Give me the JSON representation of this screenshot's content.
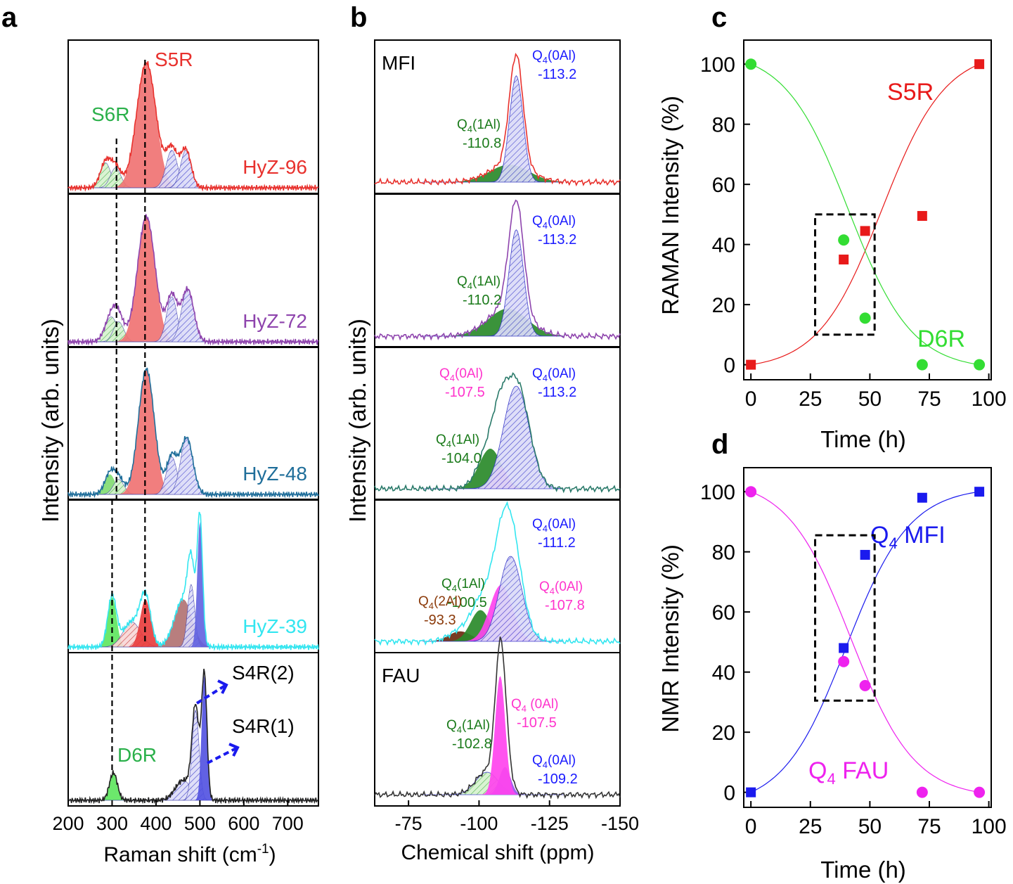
{
  "figure": {
    "panels": {
      "a": "a",
      "b": "b",
      "c": "c",
      "d": "d"
    }
  },
  "chart_data": [
    {
      "panel": "a",
      "type": "line",
      "xlabel": "Raman shift (cm",
      "xlabel_sup": "-1",
      "xlabel_end": ")",
      "ylabel": "Intensity (arb. units)",
      "xlim": [
        200,
        770
      ],
      "xticks": [
        "200",
        "300",
        "400",
        "500",
        "600",
        "700"
      ],
      "traces": [
        {
          "name": "HyZ-96",
          "color": "#e8312d",
          "peaks": [
            {
              "c": 285,
              "h": 0.2,
              "w": 12,
              "fill": "#b0d8a0",
              "hatch": true
            },
            {
              "c": 308,
              "h": 0.16,
              "w": 12,
              "fill": "#8fd48f",
              "hatch": true
            },
            {
              "c": 378,
              "h": 1.0,
              "w": 22,
              "fill": "#f07070",
              "hatch": false
            },
            {
              "c": 436,
              "h": 0.3,
              "w": 13,
              "fill": "#8080e0",
              "hatch": true
            },
            {
              "c": 468,
              "h": 0.3,
              "w": 12,
              "fill": "#8080e0",
              "hatch": true
            }
          ]
        },
        {
          "name": "HyZ-72",
          "color": "#8e44ad",
          "peaks": [
            {
              "c": 298,
              "h": 0.2,
              "w": 14,
              "fill": "#b0d8a0",
              "hatch": true
            },
            {
              "c": 315,
              "h": 0.16,
              "w": 12,
              "fill": "#8fd48f",
              "hatch": true
            },
            {
              "c": 378,
              "h": 1.0,
              "w": 20,
              "fill": "#f07070",
              "hatch": false
            },
            {
              "c": 436,
              "h": 0.36,
              "w": 12,
              "fill": "#8080e0",
              "hatch": true
            },
            {
              "c": 472,
              "h": 0.42,
              "w": 14,
              "fill": "#8080e0",
              "hatch": true
            }
          ]
        },
        {
          "name": "HyZ-48",
          "color": "#1f6e9a",
          "peaks": [
            {
              "c": 295,
              "h": 0.16,
              "w": 12,
              "fill": "#7fdc6f",
              "hatch": false
            },
            {
              "c": 315,
              "h": 0.12,
              "w": 12,
              "fill": "#a8e0a0",
              "hatch": true
            },
            {
              "c": 378,
              "h": 1.0,
              "w": 18,
              "fill": "#f07070",
              "hatch": false
            },
            {
              "c": 436,
              "h": 0.3,
              "w": 12,
              "fill": "#8080e0",
              "hatch": true
            },
            {
              "c": 470,
              "h": 0.45,
              "w": 14,
              "fill": "#8080e0",
              "hatch": true
            }
          ]
        },
        {
          "name": "HyZ-39",
          "color": "#33e6f0",
          "peaks": [
            {
              "c": 300,
              "h": 0.4,
              "w": 10,
              "fill": "#5ce65c",
              "hatch": false
            },
            {
              "c": 345,
              "h": 0.2,
              "w": 20,
              "fill": "#f4a0a0",
              "hatch": true
            },
            {
              "c": 376,
              "h": 0.38,
              "w": 12,
              "fill": "#e83a3a",
              "hatch": false
            },
            {
              "c": 462,
              "h": 0.38,
              "w": 20,
              "fill": "#b07070",
              "hatch": false
            },
            {
              "c": 480,
              "h": 0.5,
              "w": 8,
              "fill": "#9080d0",
              "hatch": true
            },
            {
              "c": 500,
              "h": 1.0,
              "w": 6,
              "fill": "#6060e0",
              "hatch": false
            }
          ]
        },
        {
          "name": "",
          "color": "#222222",
          "peaks": [
            {
              "c": 303,
              "h": 0.22,
              "w": 9,
              "fill": "#5ce65c",
              "hatch": false
            },
            {
              "c": 462,
              "h": 0.16,
              "w": 18,
              "fill": "#b07070",
              "hatch": true
            },
            {
              "c": 490,
              "h": 0.72,
              "w": 8,
              "fill": "#8080e0",
              "hatch": true
            },
            {
              "c": 510,
              "h": 1.0,
              "w": 6,
              "fill": "#5050e0",
              "hatch": false
            }
          ]
        }
      ],
      "annotations": {
        "S5R": "S5R",
        "S6R": "S6R",
        "D6R": "D6R",
        "S4R2": "S4R(2)",
        "S4R1": "S4R(1)"
      },
      "dashed_lines_x": [
        310,
        375,
        300
      ]
    },
    {
      "panel": "b",
      "type": "line",
      "xlabel": "Chemical shift  (ppm)",
      "ylabel": "Intensity (arb. units)",
      "xlim": [
        -63,
        -150
      ],
      "xticks": [
        "-75",
        "-100",
        "-125",
        "-150"
      ],
      "xtick_values": [
        -75,
        -100,
        -125,
        -150
      ],
      "panel_labels": [
        "MFI",
        "",
        "",
        "",
        "FAU"
      ],
      "annotations": [
        {
          "panel": 0,
          "items": [
            {
              "label": "Q4(0Al)",
              "value": "-113.2",
              "color": "#1a1aff"
            },
            {
              "label": "Q4(1Al)",
              "value": "-110.8",
              "color": "#1a7a1a"
            }
          ]
        },
        {
          "panel": 1,
          "items": [
            {
              "label": "Q4(0Al)",
              "value": "-113.2",
              "color": "#1a1aff"
            },
            {
              "label": "Q4(1Al)",
              "value": "-110.2",
              "color": "#1a7a1a"
            }
          ]
        },
        {
          "panel": 2,
          "items": [
            {
              "label": "Q4(0Al)",
              "value": "-107.5",
              "color": "#ff33cc"
            },
            {
              "label": "Q4(0Al)",
              "value": "-113.2",
              "color": "#1a1aff"
            },
            {
              "label": "Q4(1Al)",
              "value": "-104.0",
              "color": "#1a7a1a"
            }
          ]
        },
        {
          "panel": 3,
          "items": [
            {
              "label": "Q4(0Al)",
              "value": "-111.2",
              "color": "#1a1aff"
            },
            {
              "label": "Q4(1Al)",
              "value": "-100.5",
              "color": "#1a7a1a"
            },
            {
              "label": "Q4(0Al)",
              "value": "-107.8",
              "color": "#ff33cc"
            },
            {
              "label": "Q4(2Al)",
              "value": "-93.3",
              "color": "#8b3a0a"
            }
          ]
        },
        {
          "panel": 4,
          "items": [
            {
              "label": "Q4 (0Al)",
              "value": "-107.5",
              "color": "#ff33cc"
            },
            {
              "label": "Q4(1Al)",
              "value": "-102.8",
              "color": "#1a7a1a"
            },
            {
              "label": "Q4(0Al)",
              "value": "-109.2",
              "color": "#1a1aff"
            }
          ]
        }
      ]
    },
    {
      "panel": "c",
      "type": "scatter",
      "xlabel": "Time (h)",
      "ylabel": "RAMAN Intensity (%)",
      "xlim": [
        -3,
        101
      ],
      "ylim": [
        -5,
        108
      ],
      "xticks": [
        0,
        25,
        50,
        75,
        100
      ],
      "yticks": [
        0,
        20,
        40,
        60,
        80,
        100
      ],
      "series": [
        {
          "name": "S5R",
          "color": "#e81a1a",
          "marker": "square",
          "x": [
            0,
            39,
            48,
            72,
            96
          ],
          "y": [
            0,
            35,
            44.5,
            49.5,
            100
          ]
        },
        {
          "name": "D6R",
          "color": "#33dd33",
          "marker": "circle",
          "x": [
            0,
            39,
            48,
            72,
            96
          ],
          "y": [
            100,
            41.5,
            15.5,
            0,
            0
          ]
        }
      ],
      "box": {
        "x": [
          27,
          52
        ],
        "y": [
          10,
          50
        ]
      }
    },
    {
      "panel": "d",
      "type": "scatter",
      "xlabel": "Time (h)",
      "ylabel": "NMR Intensity (%)",
      "xlim": [
        -3,
        101
      ],
      "ylim": [
        -5,
        108
      ],
      "xticks": [
        0,
        25,
        50,
        75,
        100
      ],
      "yticks": [
        0,
        20,
        40,
        60,
        80,
        100
      ],
      "series": [
        {
          "name": "Q4 MFI",
          "color": "#1a1aee",
          "marker": "square",
          "x": [
            0,
            39,
            48,
            72,
            96
          ],
          "y": [
            0,
            48,
            79,
            98,
            100
          ]
        },
        {
          "name": "Q4 FAU",
          "color": "#ee22ee",
          "marker": "circle",
          "x": [
            0,
            39,
            48,
            72,
            96
          ],
          "y": [
            100,
            43.5,
            35.5,
            0,
            0
          ]
        }
      ],
      "box": {
        "x": [
          27,
          52
        ],
        "y": [
          30.5,
          85.5
        ]
      }
    }
  ]
}
